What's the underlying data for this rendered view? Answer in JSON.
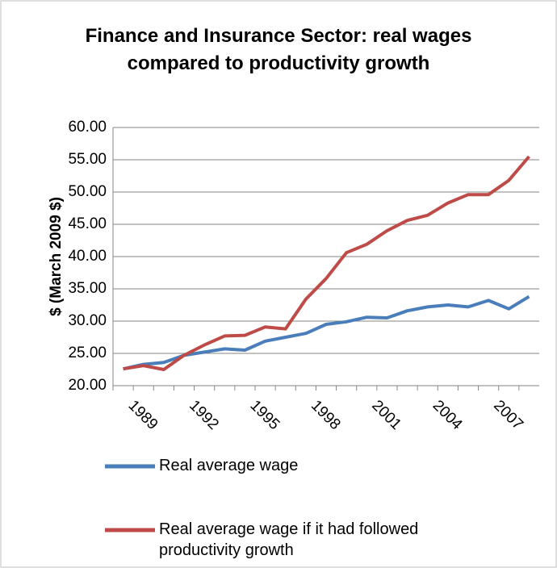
{
  "chart_data": {
    "type": "line",
    "title": "Finance and Insurance Sector: real wages compared to productivity growth",
    "y_label": "$ (March 2009 $)",
    "categories": [
      null,
      "1989",
      null,
      null,
      "1992",
      null,
      null,
      "1995",
      null,
      null,
      "1998",
      null,
      null,
      "2001",
      null,
      null,
      "2004",
      null,
      null,
      "2007",
      null
    ],
    "series": [
      {
        "name": "Real average wage",
        "color": "#4a7ebb",
        "values": [
          22.6,
          23.3,
          23.6,
          24.7,
          25.2,
          25.7,
          25.5,
          26.9,
          27.5,
          28.1,
          29.5,
          29.9,
          30.6,
          30.5,
          31.6,
          32.2,
          32.5,
          32.2,
          33.2,
          31.9,
          33.8
        ]
      },
      {
        "name": "Real average wage if it had followed productivity growth",
        "color": "#be4b48",
        "values": [
          22.6,
          23.1,
          22.5,
          24.7,
          26.3,
          27.7,
          27.8,
          29.1,
          28.8,
          33.4,
          36.6,
          40.6,
          41.9,
          44.0,
          45.6,
          46.4,
          48.3,
          49.6,
          49.6,
          51.8,
          55.5
        ]
      }
    ],
    "ylim": [
      20,
      60
    ],
    "yticks": [
      {
        "value": 20,
        "label": "20.00"
      },
      {
        "value": 25,
        "label": "25.00"
      },
      {
        "value": 30,
        "label": "30.00"
      },
      {
        "value": 35,
        "label": "35.00"
      },
      {
        "value": 40,
        "label": "40.00"
      },
      {
        "value": 45,
        "label": "45.00"
      },
      {
        "value": 50,
        "label": "50.00"
      },
      {
        "value": 55,
        "label": "55.00"
      },
      {
        "value": 60,
        "label": "60.00"
      }
    ],
    "grid": true
  }
}
